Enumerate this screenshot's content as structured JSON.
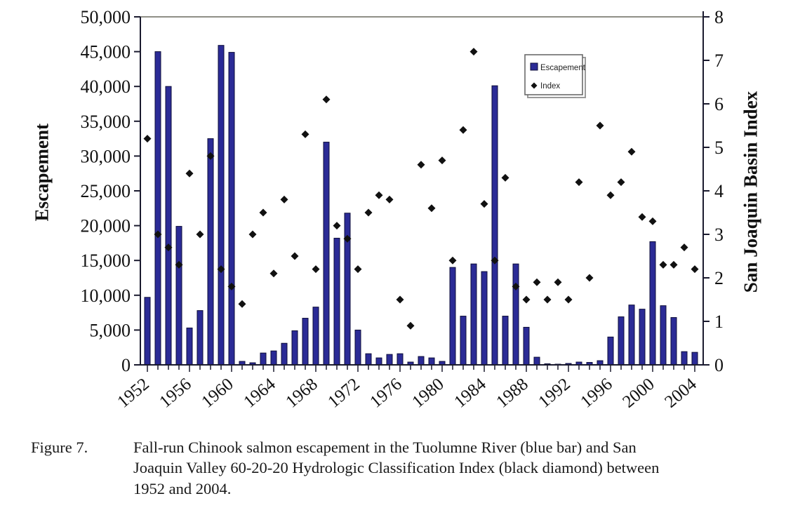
{
  "caption": {
    "figure_label": "Figure 7.",
    "lines": [
      "Fall-run Chinook salmon escapement in the Tuolumne River (blue bar) and San",
      "Joaquin Valley 60-20-20 Hydrologic Classification Index (black diamond) between",
      "1952 and 2004."
    ]
  },
  "chart_data": {
    "type": "bar",
    "subtype": "combo-bar-scatter",
    "title": "",
    "left_axis": {
      "title": "Escapement",
      "min": 0,
      "max": 50000,
      "tick_step": 5000,
      "tick_labels": [
        "0",
        "5,000",
        "10,000",
        "15,000",
        "20,000",
        "25,000",
        "30,000",
        "35,000",
        "40,000",
        "45,000",
        "50,000"
      ]
    },
    "right_axis": {
      "title": "San Joaquin Basin Index",
      "min": 0,
      "max": 8,
      "tick_step": 1,
      "tick_labels": [
        "0",
        "1",
        "2",
        "3",
        "4",
        "5",
        "6",
        "7",
        "8"
      ]
    },
    "x_axis": {
      "tick_labels": [
        "1952",
        "1956",
        "1960",
        "1964",
        "1968",
        "1972",
        "1976",
        "1980",
        "1984",
        "1988",
        "1992",
        "1996",
        "2000",
        "2004"
      ],
      "label_every": 4
    },
    "grid": false,
    "legend_position": "upper-right-inside",
    "years": [
      1952,
      1953,
      1954,
      1955,
      1956,
      1957,
      1958,
      1959,
      1960,
      1961,
      1962,
      1963,
      1964,
      1965,
      1966,
      1967,
      1968,
      1969,
      1970,
      1971,
      1972,
      1973,
      1974,
      1975,
      1976,
      1977,
      1978,
      1979,
      1980,
      1981,
      1982,
      1983,
      1984,
      1985,
      1986,
      1987,
      1988,
      1989,
      1990,
      1991,
      1992,
      1993,
      1994,
      1995,
      1996,
      1997,
      1998,
      1999,
      2000,
      2001,
      2002,
      2003,
      2004
    ],
    "series": [
      {
        "name": "Escapement",
        "type": "bar",
        "axis": "left",
        "color": "#2b2b96",
        "values": [
          9700,
          45000,
          40000,
          19900,
          5300,
          7800,
          32500,
          45900,
          44900,
          500,
          300,
          1700,
          2000,
          3100,
          4900,
          6700,
          8300,
          32000,
          18200,
          21800,
          5000,
          1600,
          1000,
          1500,
          1600,
          400,
          1200,
          1000,
          500,
          14000,
          7000,
          14500,
          13400,
          40100,
          7000,
          14500,
          5400,
          1100,
          150,
          100,
          200,
          400,
          350,
          600,
          4000,
          6900,
          8600,
          8000,
          17700,
          8500,
          6800,
          1900,
          1800
        ]
      },
      {
        "name": "Index",
        "type": "scatter-diamond",
        "axis": "right",
        "color": "#111111",
        "values": [
          5.2,
          3.0,
          2.7,
          2.3,
          4.4,
          3.0,
          4.8,
          2.2,
          1.8,
          1.4,
          3.0,
          3.5,
          2.1,
          3.8,
          2.5,
          5.3,
          2.2,
          6.1,
          3.2,
          2.9,
          2.2,
          3.5,
          3.9,
          3.8,
          1.5,
          0.9,
          4.6,
          3.6,
          4.7,
          2.4,
          5.4,
          7.2,
          3.7,
          2.4,
          4.3,
          1.8,
          1.5,
          1.9,
          1.5,
          1.9,
          1.5,
          4.2,
          2.0,
          5.5,
          3.9,
          4.2,
          4.9,
          3.4,
          3.3,
          2.3,
          2.3,
          2.7,
          2.2
        ]
      }
    ],
    "colors": {
      "bar_fill": "#2b2b96",
      "bar_edge": "#0e0e3a",
      "diamond": "#111111",
      "axis_line": "#1a1a2e",
      "top_border": "#8f8f86",
      "tick_text": "#111111",
      "legend_border": "#6b6b6b",
      "legend_shadow": "#9a9a9a",
      "background": "#ffffff"
    }
  }
}
